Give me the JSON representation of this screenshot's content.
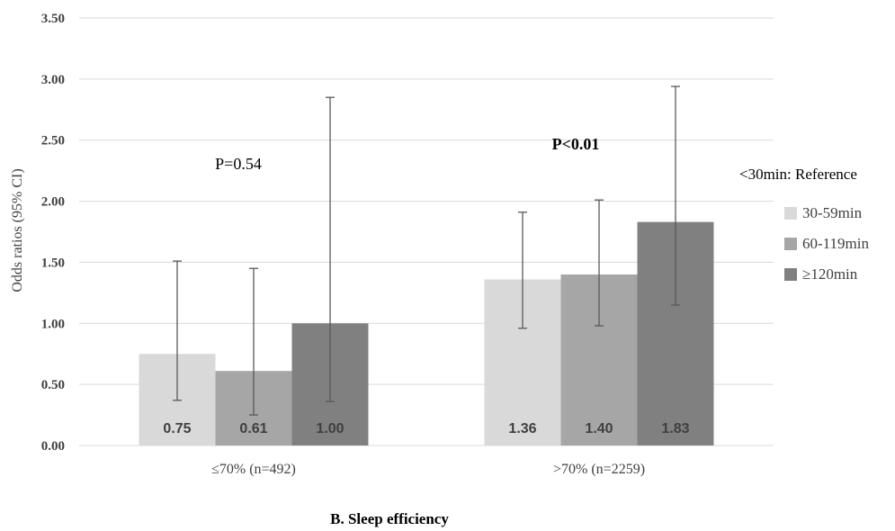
{
  "chart_data": {
    "type": "bar",
    "categories": [
      "≤70% (n=492)",
      ">70% (n=2259)"
    ],
    "series": [
      {
        "name": "30-59min",
        "values": [
          0.75,
          1.36
        ],
        "ci_low": [
          0.37,
          0.96
        ],
        "ci_high": [
          1.51,
          1.91
        ],
        "color": "#d9d9d9"
      },
      {
        "name": "60-119min",
        "values": [
          0.61,
          1.4
        ],
        "ci_low": [
          0.25,
          0.98
        ],
        "ci_high": [
          1.45,
          2.01
        ],
        "color": "#a6a6a6"
      },
      {
        "name": "≥120min",
        "values": [
          1.0,
          1.83
        ],
        "ci_low": [
          0.36,
          1.15
        ],
        "ci_high": [
          2.85,
          2.94
        ],
        "color": "#808080"
      }
    ],
    "data_labels": [
      [
        "0.75",
        "1.36"
      ],
      [
        "0.61",
        "1.40"
      ],
      [
        "1.00",
        "1.83"
      ]
    ],
    "yticks": [
      "0.00",
      "0.50",
      "1.00",
      "1.50",
      "2.00",
      "2.50",
      "3.00",
      "3.50"
    ],
    "ylim": [
      0,
      3.5
    ],
    "ylabel": "Odds ratios (95% CI)",
    "xlabel": "",
    "grid": true,
    "legend_position": "right",
    "legend_title": "<30min: Reference",
    "annotations": [
      "P=0.54",
      "P<0.01"
    ],
    "caption": "B. Sleep efficiency"
  }
}
